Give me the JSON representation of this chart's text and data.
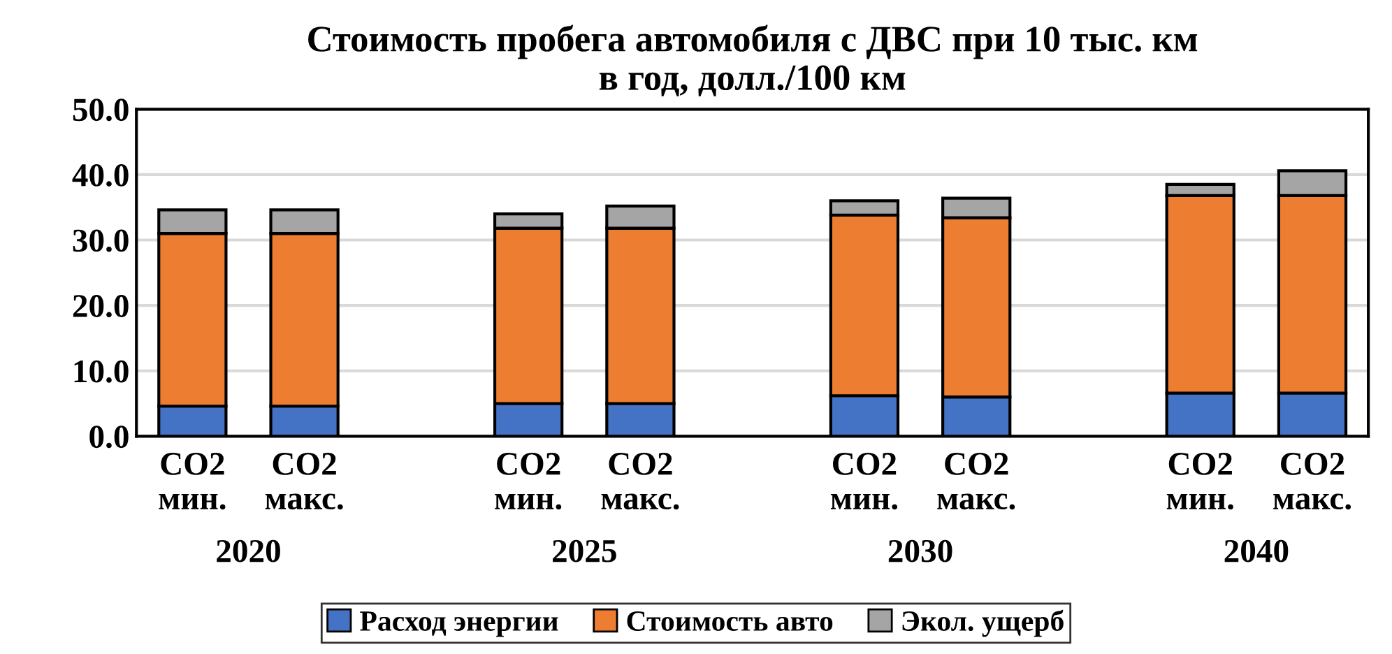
{
  "chart_data": {
    "type": "bar",
    "stacked": true,
    "title": "Стоимость пробега автомобиля с ДВС при 10 тыс. км\nв год, долл./100 км",
    "categories": [
      "CO2\nмин.",
      "CO2\nмакс.",
      null,
      "CO2\nмин.",
      "CO2\nмакс.",
      null,
      "CO2\nмин.",
      "CO2\nмакс.",
      null,
      "CO2\nмин.",
      "CO2\nмакс."
    ],
    "series": [
      {
        "name": "Расход энергии",
        "color": "#4472c4",
        "values": [
          4.6,
          4.6,
          null,
          5.0,
          5.0,
          null,
          6.2,
          6.0,
          null,
          6.6,
          6.6
        ]
      },
      {
        "name": "Стоимость авто",
        "color": "#ed7d31",
        "values": [
          26.4,
          26.4,
          null,
          26.8,
          26.8,
          null,
          27.6,
          27.4,
          null,
          30.2,
          30.2
        ]
      },
      {
        "name": "Экол. ущерб",
        "color": "#a5a5a5",
        "values": [
          3.6,
          3.6,
          null,
          2.2,
          3.4,
          null,
          2.2,
          3.0,
          null,
          1.7,
          3.8
        ]
      }
    ],
    "annotations": [
      "2020",
      "2025",
      "2030",
      "2040"
    ],
    "ylim": [
      0,
      50
    ],
    "yticks": [
      {
        "value": 0,
        "label": "0.0"
      },
      {
        "value": 10,
        "label": "10.0"
      },
      {
        "value": 20,
        "label": "20.0"
      },
      {
        "value": 30,
        "label": "30.0"
      },
      {
        "value": 40,
        "label": "40.0"
      },
      {
        "value": 50,
        "label": "50.0"
      }
    ],
    "grid": "y",
    "legend": "bottom"
  }
}
